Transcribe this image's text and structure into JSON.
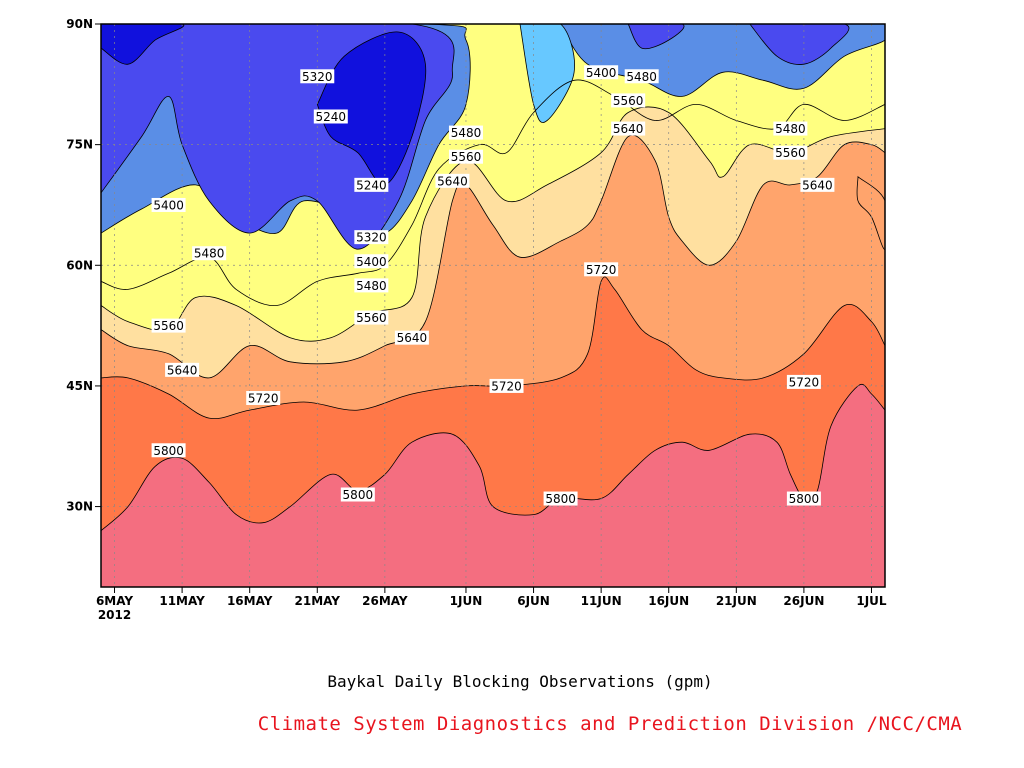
{
  "chart_data": {
    "type": "heatmap",
    "title": "Baykal Daily Blocking Observations (gpm)",
    "credit": "Climate System Diagnostics and Prediction Division /NCC/CMA",
    "x_tick_labels": [
      "6MAY",
      "11MAY",
      "16MAY",
      "21MAY",
      "26MAY",
      "1JUN",
      "6JUN",
      "11JUN",
      "16JUN",
      "21JUN",
      "26JUN",
      "1JUL"
    ],
    "x_tick_year": "2012",
    "y_tick_labels": [
      "30N",
      "45N",
      "60N",
      "75N",
      "90N"
    ],
    "xlim": [
      "2012-05-05",
      "2012-07-02"
    ],
    "ylim_lat": [
      20,
      90
    ],
    "y_ticks_lat": [
      30,
      45,
      60,
      75,
      90
    ],
    "x_ticks_date": [
      "2012-05-06",
      "2012-05-11",
      "2012-05-16",
      "2012-05-21",
      "2012-05-26",
      "2012-06-01",
      "2012-06-06",
      "2012-06-11",
      "2012-06-16",
      "2012-06-21",
      "2012-06-26",
      "2012-07-01"
    ],
    "contour_levels": [
      5240,
      5320,
      5400,
      5480,
      5560,
      5640,
      5720,
      5800
    ],
    "fill_colors": [
      "#1111dd",
      "#4a4aef",
      "#5a8ee6",
      "#67c8ff",
      "#ffff80",
      "#ffe0a0",
      "#ffa46c",
      "#ff7848",
      "#f46e80"
    ],
    "contour_lines": [
      {
        "level": 5800,
        "points": [
          [
            "2012-05-05",
            27
          ],
          [
            "2012-05-07",
            30
          ],
          [
            "2012-05-09",
            35
          ],
          [
            "2012-05-11",
            36
          ],
          [
            "2012-05-13",
            33
          ],
          [
            "2012-05-15",
            29
          ],
          [
            "2012-05-17",
            28
          ],
          [
            "2012-05-19",
            30
          ],
          [
            "2012-05-22",
            34
          ],
          [
            "2012-05-24",
            32
          ],
          [
            "2012-05-26",
            34
          ],
          [
            "2012-05-28",
            38
          ],
          [
            "2012-05-31",
            39
          ],
          [
            "2012-06-02",
            35
          ],
          [
            "2012-06-03",
            30
          ],
          [
            "2012-06-06",
            29
          ],
          [
            "2012-06-08",
            31
          ],
          [
            "2012-06-11",
            31
          ],
          [
            "2012-06-13",
            34
          ],
          [
            "2012-06-15",
            37
          ],
          [
            "2012-06-17",
            38
          ],
          [
            "2012-06-19",
            37
          ],
          [
            "2012-06-22",
            39
          ],
          [
            "2012-06-24",
            38
          ],
          [
            "2012-06-25",
            34
          ],
          [
            "2012-06-26",
            31
          ],
          [
            "2012-06-27",
            32
          ],
          [
            "2012-06-28",
            40
          ],
          [
            "2012-06-30",
            45
          ],
          [
            "2012-07-01",
            44
          ],
          [
            "2012-07-02",
            42
          ]
        ]
      },
      {
        "level": 5720,
        "points": [
          [
            "2012-05-05",
            46
          ],
          [
            "2012-05-07",
            46
          ],
          [
            "2012-05-10",
            44
          ],
          [
            "2012-05-13",
            41
          ],
          [
            "2012-05-16",
            42
          ],
          [
            "2012-05-20",
            43
          ],
          [
            "2012-05-24",
            42
          ],
          [
            "2012-05-28",
            44
          ],
          [
            "2012-06-01",
            45
          ],
          [
            "2012-06-04",
            45
          ],
          [
            "2012-06-08",
            46
          ],
          [
            "2012-06-10",
            49
          ],
          [
            "2012-06-11",
            58
          ],
          [
            "2012-06-12",
            57
          ],
          [
            "2012-06-14",
            52
          ],
          [
            "2012-06-16",
            50
          ],
          [
            "2012-06-18",
            47
          ],
          [
            "2012-06-20",
            46
          ],
          [
            "2012-06-23",
            46
          ],
          [
            "2012-06-26",
            49
          ],
          [
            "2012-06-29",
            55
          ],
          [
            "2012-07-01",
            53
          ],
          [
            "2012-07-02",
            50
          ]
        ]
      },
      {
        "level": 5640,
        "points": [
          [
            "2012-05-05",
            52
          ],
          [
            "2012-05-07",
            50
          ],
          [
            "2012-05-10",
            49
          ],
          [
            "2012-05-13",
            46
          ],
          [
            "2012-05-16",
            50
          ],
          [
            "2012-05-19",
            48
          ],
          [
            "2012-05-23",
            48
          ],
          [
            "2012-05-26",
            50
          ],
          [
            "2012-05-29",
            53
          ],
          [
            "2012-05-31",
            68
          ],
          [
            "2012-06-01",
            70
          ],
          [
            "2012-06-03",
            65
          ],
          [
            "2012-06-05",
            61
          ],
          [
            "2012-06-08",
            63
          ],
          [
            "2012-06-10",
            65
          ],
          [
            "2012-06-11",
            68
          ],
          [
            "2012-06-13",
            76
          ],
          [
            "2012-06-15",
            73
          ],
          [
            "2012-06-16",
            66
          ],
          [
            "2012-06-17",
            63
          ],
          [
            "2012-06-19",
            60
          ],
          [
            "2012-06-21",
            63
          ],
          [
            "2012-06-23",
            70
          ],
          [
            "2012-06-25",
            70
          ],
          [
            "2012-06-27",
            71
          ],
          [
            "2012-06-29",
            75
          ],
          [
            "2012-07-01",
            75
          ],
          [
            "2012-07-02",
            74
          ]
        ]
      },
      {
        "level": 5560,
        "points": [
          [
            "2012-05-05",
            55
          ],
          [
            "2012-05-07",
            53
          ],
          [
            "2012-05-10",
            52
          ],
          [
            "2012-05-12",
            56
          ],
          [
            "2012-05-15",
            55
          ],
          [
            "2012-05-19",
            51
          ],
          [
            "2012-05-22",
            51
          ],
          [
            "2012-05-25",
            54
          ],
          [
            "2012-05-28",
            56
          ],
          [
            "2012-05-29",
            66
          ],
          [
            "2012-06-01",
            73
          ],
          [
            "2012-06-04",
            68
          ],
          [
            "2012-06-07",
            70
          ],
          [
            "2012-06-11",
            74
          ],
          [
            "2012-06-13",
            79
          ],
          [
            "2012-06-16",
            79
          ],
          [
            "2012-06-19",
            73
          ],
          [
            "2012-06-20",
            71
          ],
          [
            "2012-06-22",
            75
          ],
          [
            "2012-06-25",
            74
          ],
          [
            "2012-06-28",
            76
          ],
          [
            "2012-07-02",
            77
          ]
        ]
      },
      {
        "level": 5480,
        "points": [
          [
            "2012-05-05",
            58
          ],
          [
            "2012-05-07",
            57
          ],
          [
            "2012-05-10",
            59
          ],
          [
            "2012-05-13",
            61
          ],
          [
            "2012-05-15",
            57
          ],
          [
            "2012-05-18",
            55
          ],
          [
            "2012-05-21",
            58
          ],
          [
            "2012-05-24",
            59
          ],
          [
            "2012-05-26",
            60
          ],
          [
            "2012-05-28",
            65
          ],
          [
            "2012-05-30",
            72
          ],
          [
            "2012-06-02",
            75
          ],
          [
            "2012-06-04",
            74
          ],
          [
            "2012-06-06",
            79
          ],
          [
            "2012-06-09",
            83
          ],
          [
            "2012-06-12",
            81
          ],
          [
            "2012-06-15",
            78
          ],
          [
            "2012-06-18",
            80
          ],
          [
            "2012-06-21",
            78
          ],
          [
            "2012-06-24",
            77
          ],
          [
            "2012-06-26",
            80
          ],
          [
            "2012-06-29",
            78
          ],
          [
            "2012-07-02",
            80
          ]
        ]
      }
    ],
    "contour_labels": [
      {
        "text": "5320",
        "date": "2012-05-21",
        "lat": 83.5
      },
      {
        "text": "5240",
        "date": "2012-05-22",
        "lat": 78.5
      },
      {
        "text": "5240",
        "date": "2012-05-25",
        "lat": 70
      },
      {
        "text": "5400",
        "date": "2012-05-10",
        "lat": 67.5
      },
      {
        "text": "5320",
        "date": "2012-05-25",
        "lat": 63.5
      },
      {
        "text": "5400",
        "date": "2012-05-25",
        "lat": 60.5
      },
      {
        "text": "5480",
        "date": "2012-05-13",
        "lat": 61.5
      },
      {
        "text": "5480",
        "date": "2012-05-25",
        "lat": 57.5
      },
      {
        "text": "5560",
        "date": "2012-05-10",
        "lat": 52.5
      },
      {
        "text": "5560",
        "date": "2012-05-25",
        "lat": 53.5
      },
      {
        "text": "5640",
        "date": "2012-05-11",
        "lat": 47
      },
      {
        "text": "5640",
        "date": "2012-05-28",
        "lat": 51
      },
      {
        "text": "5720",
        "date": "2012-05-17",
        "lat": 43.5
      },
      {
        "text": "5720",
        "date": "2012-06-04",
        "lat": 45
      },
      {
        "text": "5720",
        "date": "2012-06-11",
        "lat": 59.5
      },
      {
        "text": "5720",
        "date": "2012-06-26",
        "lat": 45.5
      },
      {
        "text": "5800",
        "date": "2012-05-10",
        "lat": 37
      },
      {
        "text": "5800",
        "date": "2012-05-24",
        "lat": 31.5
      },
      {
        "text": "5800",
        "date": "2012-06-08",
        "lat": 31
      },
      {
        "text": "5800",
        "date": "2012-06-26",
        "lat": 31
      },
      {
        "text": "5480",
        "date": "2012-06-01",
        "lat": 76.5
      },
      {
        "text": "5560",
        "date": "2012-06-01",
        "lat": 73.5
      },
      {
        "text": "5640",
        "date": "2012-05-31",
        "lat": 70.5
      },
      {
        "text": "5400",
        "date": "2012-06-11",
        "lat": 84
      },
      {
        "text": "5480",
        "date": "2012-06-14",
        "lat": 83.5
      },
      {
        "text": "5560",
        "date": "2012-06-13",
        "lat": 80.5
      },
      {
        "text": "5640",
        "date": "2012-06-13",
        "lat": 77
      },
      {
        "text": "5480",
        "date": "2012-06-25",
        "lat": 77
      },
      {
        "text": "5560",
        "date": "2012-06-25",
        "lat": 74
      },
      {
        "text": "5640",
        "date": "2012-06-27",
        "lat": 70
      }
    ],
    "low_regions": [
      {
        "level": 5400,
        "points": [
          [
            "2012-05-05",
            64
          ],
          [
            "2012-05-08",
            67
          ],
          [
            "2012-05-12",
            70
          ],
          [
            "2012-05-15",
            66
          ],
          [
            "2012-05-18",
            64
          ],
          [
            "2012-05-20",
            68
          ],
          [
            "2012-05-24",
            66
          ],
          [
            "2012-05-26",
            64
          ],
          [
            "2012-05-28",
            68
          ],
          [
            "2012-05-30",
            75
          ],
          [
            "2012-06-01",
            80
          ],
          [
            "2012-06-01",
            88
          ],
          [
            "2012-05-29",
            90
          ],
          [
            "2012-05-05",
            90
          ]
        ]
      },
      {
        "level": 5320,
        "points": [
          [
            "2012-05-05",
            69
          ],
          [
            "2012-05-08",
            76
          ],
          [
            "2012-05-10",
            81
          ],
          [
            "2012-05-11",
            75
          ],
          [
            "2012-05-13",
            68
          ],
          [
            "2012-05-16",
            64
          ],
          [
            "2012-05-19",
            68
          ],
          [
            "2012-05-21",
            68
          ],
          [
            "2012-05-24",
            62
          ],
          [
            "2012-05-27",
            68
          ],
          [
            "2012-05-29",
            78
          ],
          [
            "2012-05-31",
            84
          ],
          [
            "2012-05-28",
            90
          ],
          [
            "2012-05-05",
            90
          ]
        ]
      },
      {
        "level": 5240,
        "points": [
          [
            "2012-05-21",
            80
          ],
          [
            "2012-05-23",
            86
          ],
          [
            "2012-05-27",
            89
          ],
          [
            "2012-05-29",
            85
          ],
          [
            "2012-05-28",
            76
          ],
          [
            "2012-05-26",
            70
          ],
          [
            "2012-05-24",
            74
          ],
          [
            "2012-05-22",
            76
          ]
        ]
      },
      {
        "level": 5240,
        "points": [
          [
            "2012-05-05",
            87
          ],
          [
            "2012-05-07",
            85
          ],
          [
            "2012-05-09",
            88
          ],
          [
            "2012-05-11",
            90
          ],
          [
            "2012-05-05",
            90
          ]
        ]
      },
      {
        "level": 5400,
        "points": [
          [
            "2012-06-08",
            90
          ],
          [
            "2012-06-10",
            85
          ],
          [
            "2012-06-14",
            83
          ],
          [
            "2012-06-17",
            81
          ],
          [
            "2012-06-20",
            84
          ],
          [
            "2012-06-23",
            83
          ],
          [
            "2012-06-26",
            82
          ],
          [
            "2012-06-29",
            86
          ],
          [
            "2012-07-02",
            88
          ],
          [
            "2012-07-02",
            90
          ]
        ]
      },
      {
        "level": 5320,
        "points": [
          [
            "2012-06-13",
            90
          ],
          [
            "2012-06-14",
            87
          ],
          [
            "2012-06-16",
            88
          ],
          [
            "2012-06-17",
            90
          ]
        ]
      },
      {
        "level": 5320,
        "points": [
          [
            "2012-06-22",
            90
          ],
          [
            "2012-06-24",
            86
          ],
          [
            "2012-06-26",
            85
          ],
          [
            "2012-06-28",
            87
          ],
          [
            "2012-06-29",
            90
          ]
        ]
      },
      {
        "level": 5480,
        "points": [
          [
            "2012-06-05",
            90
          ],
          [
            "2012-06-06",
            80
          ],
          [
            "2012-06-07",
            78
          ],
          [
            "2012-06-09",
            84
          ],
          [
            "2012-06-08",
            90
          ]
        ]
      },
      {
        "level": 5720,
        "points": [
          [
            "2012-06-30",
            71
          ],
          [
            "2012-07-02",
            68
          ],
          [
            "2012-07-02",
            62
          ],
          [
            "2012-07-01",
            66
          ],
          [
            "2012-06-30",
            68
          ]
        ]
      }
    ]
  }
}
